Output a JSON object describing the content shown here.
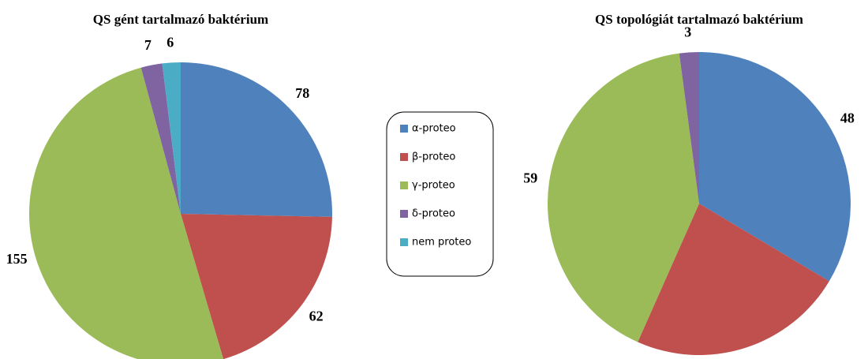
{
  "chart_data": [
    {
      "type": "pie",
      "title": "QS gént tartalmazó baktérium",
      "categories": [
        "α-proteo",
        "β-proteo",
        "γ-proteo",
        "δ-proteo",
        "nem proteo"
      ],
      "values": [
        78,
        62,
        155,
        7,
        6
      ],
      "colors": [
        "#4f81bd",
        "#c0504d",
        "#9bbb59",
        "#8064a2",
        "#4bacc6"
      ]
    },
    {
      "type": "pie",
      "title": "QS topológiát tartalmazó baktérium",
      "categories": [
        "α-proteo",
        "β-proteo",
        "γ-proteo",
        "δ-proteo"
      ],
      "values": [
        48,
        33,
        59,
        3
      ],
      "colors": [
        "#4f81bd",
        "#c0504d",
        "#9bbb59",
        "#8064a2"
      ]
    }
  ]
}
